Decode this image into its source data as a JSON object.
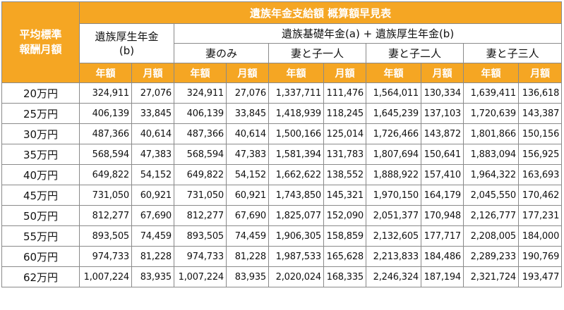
{
  "title": "遺族年金支給額 概算額早見表",
  "row_header": "平均標準\n報酬月額",
  "groups": {
    "b_only": "遺族厚生年金\n(b)",
    "ab": "遺族基礎年金(a) + 遺族厚生年金(b)"
  },
  "subgroups": [
    "妻のみ",
    "妻と子一人",
    "妻と子二人",
    "妻と子三人"
  ],
  "unit_labels": [
    "年額",
    "月額",
    "年額",
    "月額",
    "年額",
    "月額",
    "年額",
    "月額",
    "年額",
    "月額"
  ],
  "rows": [
    {
      "label": "20万円",
      "values": [
        "324,911",
        "27,076",
        "324,911",
        "27,076",
        "1,337,711",
        "111,476",
        "1,564,011",
        "130,334",
        "1,639,411",
        "136,618"
      ]
    },
    {
      "label": "25万円",
      "values": [
        "406,139",
        "33,845",
        "406,139",
        "33,845",
        "1,418,939",
        "118,245",
        "1,645,239",
        "137,103",
        "1,720,639",
        "143,387"
      ]
    },
    {
      "label": "30万円",
      "values": [
        "487,366",
        "40,614",
        "487,366",
        "40,614",
        "1,500,166",
        "125,014",
        "1,726,466",
        "143,872",
        "1,801,866",
        "150,156"
      ]
    },
    {
      "label": "35万円",
      "values": [
        "568,594",
        "47,383",
        "568,594",
        "47,383",
        "1,581,394",
        "131,783",
        "1,807,694",
        "150,641",
        "1,883,094",
        "156,925"
      ]
    },
    {
      "label": "40万円",
      "values": [
        "649,822",
        "54,152",
        "649,822",
        "54,152",
        "1,662,622",
        "138,552",
        "1,888,922",
        "157,410",
        "1,964,322",
        "163,693"
      ]
    },
    {
      "label": "45万円",
      "values": [
        "731,050",
        "60,921",
        "731,050",
        "60,921",
        "1,743,850",
        "145,321",
        "1,970,150",
        "164,179",
        "2,045,550",
        "170,462"
      ]
    },
    {
      "label": "50万円",
      "values": [
        "812,277",
        "67,690",
        "812,277",
        "67,690",
        "1,825,077",
        "152,090",
        "2,051,377",
        "170,948",
        "2,126,777",
        "177,231"
      ]
    },
    {
      "label": "55万円",
      "values": [
        "893,505",
        "74,459",
        "893,505",
        "74,459",
        "1,906,305",
        "158,859",
        "2,132,605",
        "177,717",
        "2,208,005",
        "184,000"
      ]
    },
    {
      "label": "60万円",
      "values": [
        "974,733",
        "81,228",
        "974,733",
        "81,228",
        "1,987,533",
        "165,628",
        "2,213,833",
        "184,486",
        "2,289,233",
        "190,769"
      ]
    },
    {
      "label": "62万円",
      "values": [
        "1,007,224",
        "83,935",
        "1,007,224",
        "83,935",
        "2,020,024",
        "168,335",
        "2,246,324",
        "187,194",
        "2,321,724",
        "193,477"
      ]
    }
  ]
}
